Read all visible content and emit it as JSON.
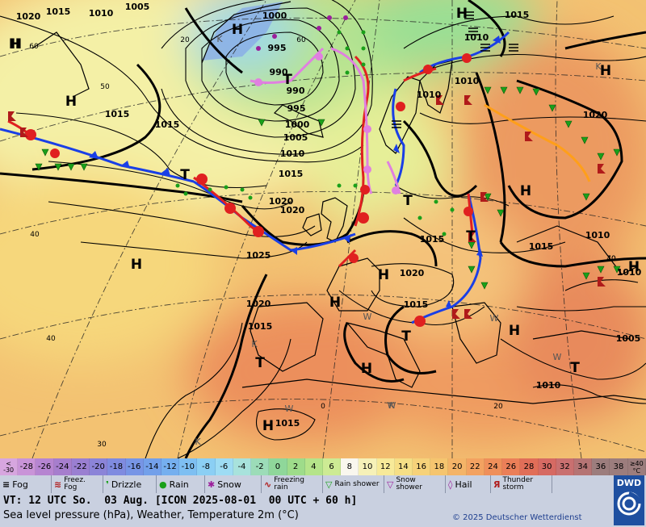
{
  "map": {
    "pressure_labels": [
      "1020",
      "1015",
      "1010",
      "1005",
      "1000",
      "995",
      "990",
      "990",
      "995",
      "1000",
      "1005",
      "1010",
      "1015",
      "1020",
      "1015",
      "1010",
      "1010",
      "1010",
      "1015",
      "1015",
      "1020",
      "1025",
      "1020",
      "1020",
      "1015",
      "1015",
      "1015",
      "1020",
      "1015",
      "1010",
      "1010",
      "1005",
      "1010",
      "1015"
    ],
    "center_labels": [
      "H",
      "H",
      "H",
      "H",
      "H",
      "H",
      "H",
      "H",
      "H",
      "H",
      "H",
      "H",
      "H",
      "T",
      "T",
      "T",
      "T",
      "T",
      "T",
      "T",
      "H"
    ],
    "latitude_labels": [
      "60",
      "50",
      "40",
      "40",
      "30",
      "20",
      "60",
      "70",
      "40",
      "20",
      "0"
    ],
    "minor_labels": [
      "K",
      "K",
      "K",
      "W",
      "W",
      "W",
      "W",
      "K",
      "K",
      "W",
      "K"
    ]
  },
  "scale": {
    "colors": [
      "#d7a6df",
      "#c994d8",
      "#b685d1",
      "#a67ecd",
      "#9a7fd1",
      "#8b84d8",
      "#7f8be0",
      "#7795e6",
      "#73a0ea",
      "#75afef",
      "#7ebff2",
      "#8bcff4",
      "#9edcf4",
      "#a8e2dc",
      "#9cdcb8",
      "#8fd79a",
      "#9edc8a",
      "#b5e48a",
      "#cdeb94",
      "#f9f7ee",
      "#f6f1b8",
      "#f7ea99",
      "#f6df86",
      "#f6d27a",
      "#f5c56f",
      "#f4b468",
      "#f3a261",
      "#ef8f5a",
      "#eb7f58",
      "#e16e58",
      "#d66a63",
      "#c97070",
      "#b57474",
      "#9c7d7d"
    ],
    "labels": [
      "-30",
      "-28",
      "-26",
      "-24",
      "-22",
      "-20",
      "-18",
      "-16",
      "-14",
      "-12",
      "-10",
      "-8",
      "-6",
      "-4",
      "-2",
      "0",
      "2",
      "4",
      "6",
      "8",
      "10",
      "12",
      "14",
      "16",
      "18",
      "20",
      "22",
      "24",
      "26",
      "28",
      "30",
      "32",
      "34",
      "36",
      "38"
    ],
    "first_top": "<",
    "first_bottom": "-30",
    "last_top": "≥40",
    "last_bottom": "°C"
  },
  "weather_legend": [
    {
      "icon": "fog-icon",
      "label": "Fog"
    },
    {
      "icon": "freezing-fog-icon",
      "label": "Freez. Fog"
    },
    {
      "icon": "drizzle-icon",
      "label": "Drizzle"
    },
    {
      "icon": "rain-icon",
      "label": "Rain"
    },
    {
      "icon": "snow-icon",
      "label": "Snow"
    },
    {
      "icon": "freezing-rain-icon",
      "label": "Freezing rain"
    },
    {
      "icon": "rain-shower-icon",
      "label": "Rain shower"
    },
    {
      "icon": "snow-shower-icon",
      "label": "Snow shower"
    },
    {
      "icon": "hail-icon",
      "label": "Hail"
    },
    {
      "icon": "thunderstorm-icon",
      "label": "Thunder storm"
    }
  ],
  "info": {
    "valid_time": "VT: 12 UTC So.  03 Aug. [ICON 2025-08-01  00 UTC + 60 h]",
    "subtitle": "Sea level pressure (hPa), Weather, Temperature 2m (°C)",
    "copyright": "© 2025 Deutscher Wetterdienst",
    "logo_text": "DWD"
  }
}
